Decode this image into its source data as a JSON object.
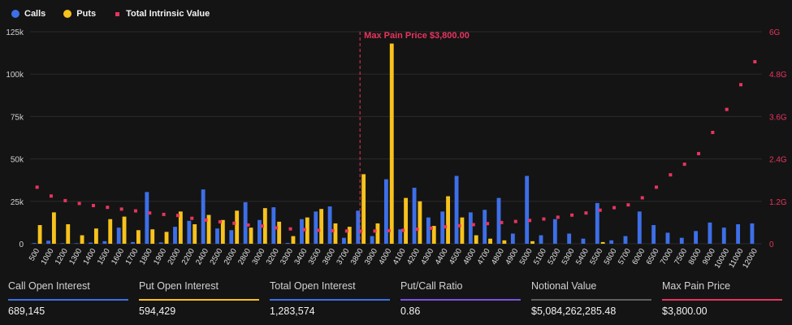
{
  "legend": {
    "calls_label": "Calls",
    "puts_label": "Puts",
    "intrinsic_label": "Total Intrinsic Value"
  },
  "colors": {
    "calls": "#3d6fe8",
    "puts": "#f7c21d",
    "intrinsic": "#e8345f",
    "ratio": "#7a52e0",
    "notional": "#5f5f5f",
    "background": "#141414"
  },
  "chart_data": {
    "type": "bar",
    "title": "",
    "xlabel": "",
    "ylabel": "",
    "ylim": [
      0,
      125000
    ],
    "y_ticks": [
      0,
      25000,
      50000,
      75000,
      100000,
      125000
    ],
    "y_tick_labels": [
      "0",
      "25k",
      "50k",
      "75k",
      "100k",
      "125k"
    ],
    "y2lim": [
      0,
      6
    ],
    "y2_ticks": [
      0,
      1.2,
      2.4,
      3.6,
      4.8,
      6
    ],
    "y2_tick_labels": [
      "0",
      "1.2G",
      "2.4G",
      "3.6G",
      "4.8G",
      "6G"
    ],
    "categories": [
      "500",
      "1000",
      "1200",
      "1300",
      "1400",
      "1500",
      "1600",
      "1700",
      "1800",
      "1900",
      "2000",
      "2200",
      "2400",
      "2500",
      "2600",
      "2800",
      "3000",
      "3200",
      "3300",
      "3400",
      "3500",
      "3600",
      "3700",
      "3800",
      "3900",
      "4000",
      "4100",
      "4200",
      "4300",
      "4400",
      "4500",
      "4600",
      "4700",
      "4800",
      "4900",
      "5000",
      "5100",
      "5200",
      "5300",
      "5400",
      "5500",
      "5600",
      "5700",
      "6000",
      "6500",
      "7000",
      "7500",
      "8000",
      "9000",
      "10000",
      "11000",
      "12000"
    ],
    "series": [
      {
        "name": "Calls",
        "axis": "left",
        "values": [
          400,
          1800,
          300,
          300,
          700,
          1500,
          9500,
          1000,
          30500,
          800,
          10000,
          13500,
          32000,
          9000,
          8000,
          24500,
          14000,
          21500,
          500,
          14500,
          19000,
          22000,
          3500,
          19500,
          4500,
          38000,
          8500,
          33000,
          15500,
          19000,
          40000,
          18500,
          20000,
          27000,
          6000,
          40000,
          5000,
          14500,
          6000,
          3000,
          24000,
          2000,
          4500,
          19000,
          11000,
          6500,
          3500,
          7500,
          12500,
          9500,
          11500,
          12000
        ]
      },
      {
        "name": "Puts",
        "axis": "left",
        "values": [
          11000,
          18500,
          11500,
          5000,
          9000,
          14500,
          16000,
          8000,
          8500,
          7000,
          19000,
          11500,
          17000,
          14000,
          19500,
          9500,
          21000,
          13000,
          4500,
          15500,
          20500,
          12000,
          10000,
          41000,
          12000,
          118000,
          27000,
          25000,
          10500,
          28000,
          15500,
          5000,
          3000,
          2000,
          0,
          1500,
          0,
          0,
          0,
          0,
          1000,
          0,
          0,
          0,
          0,
          0,
          0,
          0,
          0,
          0,
          0,
          0
        ]
      },
      {
        "name": "Total Intrinsic Value",
        "axis": "right",
        "unit": "G",
        "values": [
          1.6,
          1.35,
          1.22,
          1.14,
          1.08,
          1.03,
          0.98,
          0.93,
          0.87,
          0.83,
          0.8,
          0.72,
          0.67,
          0.62,
          0.58,
          0.53,
          0.5,
          0.45,
          0.42,
          0.4,
          0.38,
          0.37,
          0.36,
          0.36,
          0.36,
          0.37,
          0.38,
          0.41,
          0.44,
          0.48,
          0.51,
          0.54,
          0.57,
          0.6,
          0.63,
          0.66,
          0.7,
          0.75,
          0.81,
          0.87,
          0.95,
          1.02,
          1.1,
          1.3,
          1.6,
          1.95,
          2.25,
          2.55,
          3.15,
          3.8,
          4.5,
          5.15
        ]
      }
    ],
    "max_pain": {
      "strike": "3800",
      "label": "Max Pain Price $3,800.00"
    }
  },
  "stats": [
    {
      "label": "Call Open Interest",
      "value": "689,145"
    },
    {
      "label": "Put Open Interest",
      "value": "594,429"
    },
    {
      "label": "Total Open Interest",
      "value": "1,283,574"
    },
    {
      "label": "Put/Call Ratio",
      "value": "0.86"
    },
    {
      "label": "Notional Value",
      "value": "$5,084,262,285.48"
    },
    {
      "label": "Max Pain Price",
      "value": "$3,800.00"
    }
  ]
}
